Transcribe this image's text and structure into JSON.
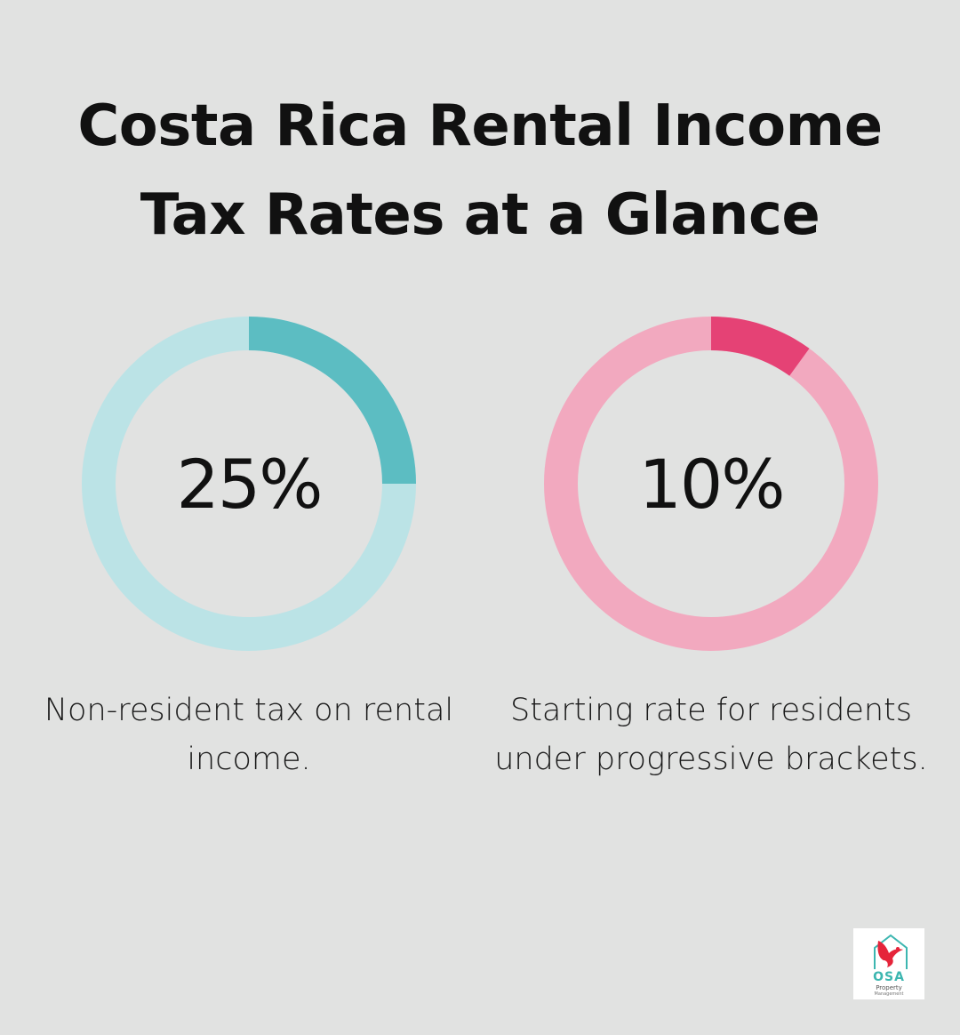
{
  "title_lines": [
    "Costa Rica Rental Income",
    "Tax Rates at a Glance"
  ],
  "chart_data": [
    {
      "type": "pie",
      "value": 25,
      "value_label": "25%",
      "caption": "Non-resident tax on rental income.",
      "colors": {
        "fill": "#5cbdc2",
        "track": "#bbe3e6"
      }
    },
    {
      "type": "pie",
      "value": 10,
      "value_label": "10%",
      "caption": "Starting rate for residents under progressive brackets.",
      "colors": {
        "fill": "#e54275",
        "track": "#f2a9bf"
      }
    }
  ],
  "logo": {
    "text": "OSA",
    "subtitle": "Property",
    "tagline": "Management",
    "colors": {
      "bird": "#e5243a",
      "house": "#3cb6b0"
    }
  },
  "colors": {
    "background": "#e1e2e1",
    "text": "#111111"
  }
}
